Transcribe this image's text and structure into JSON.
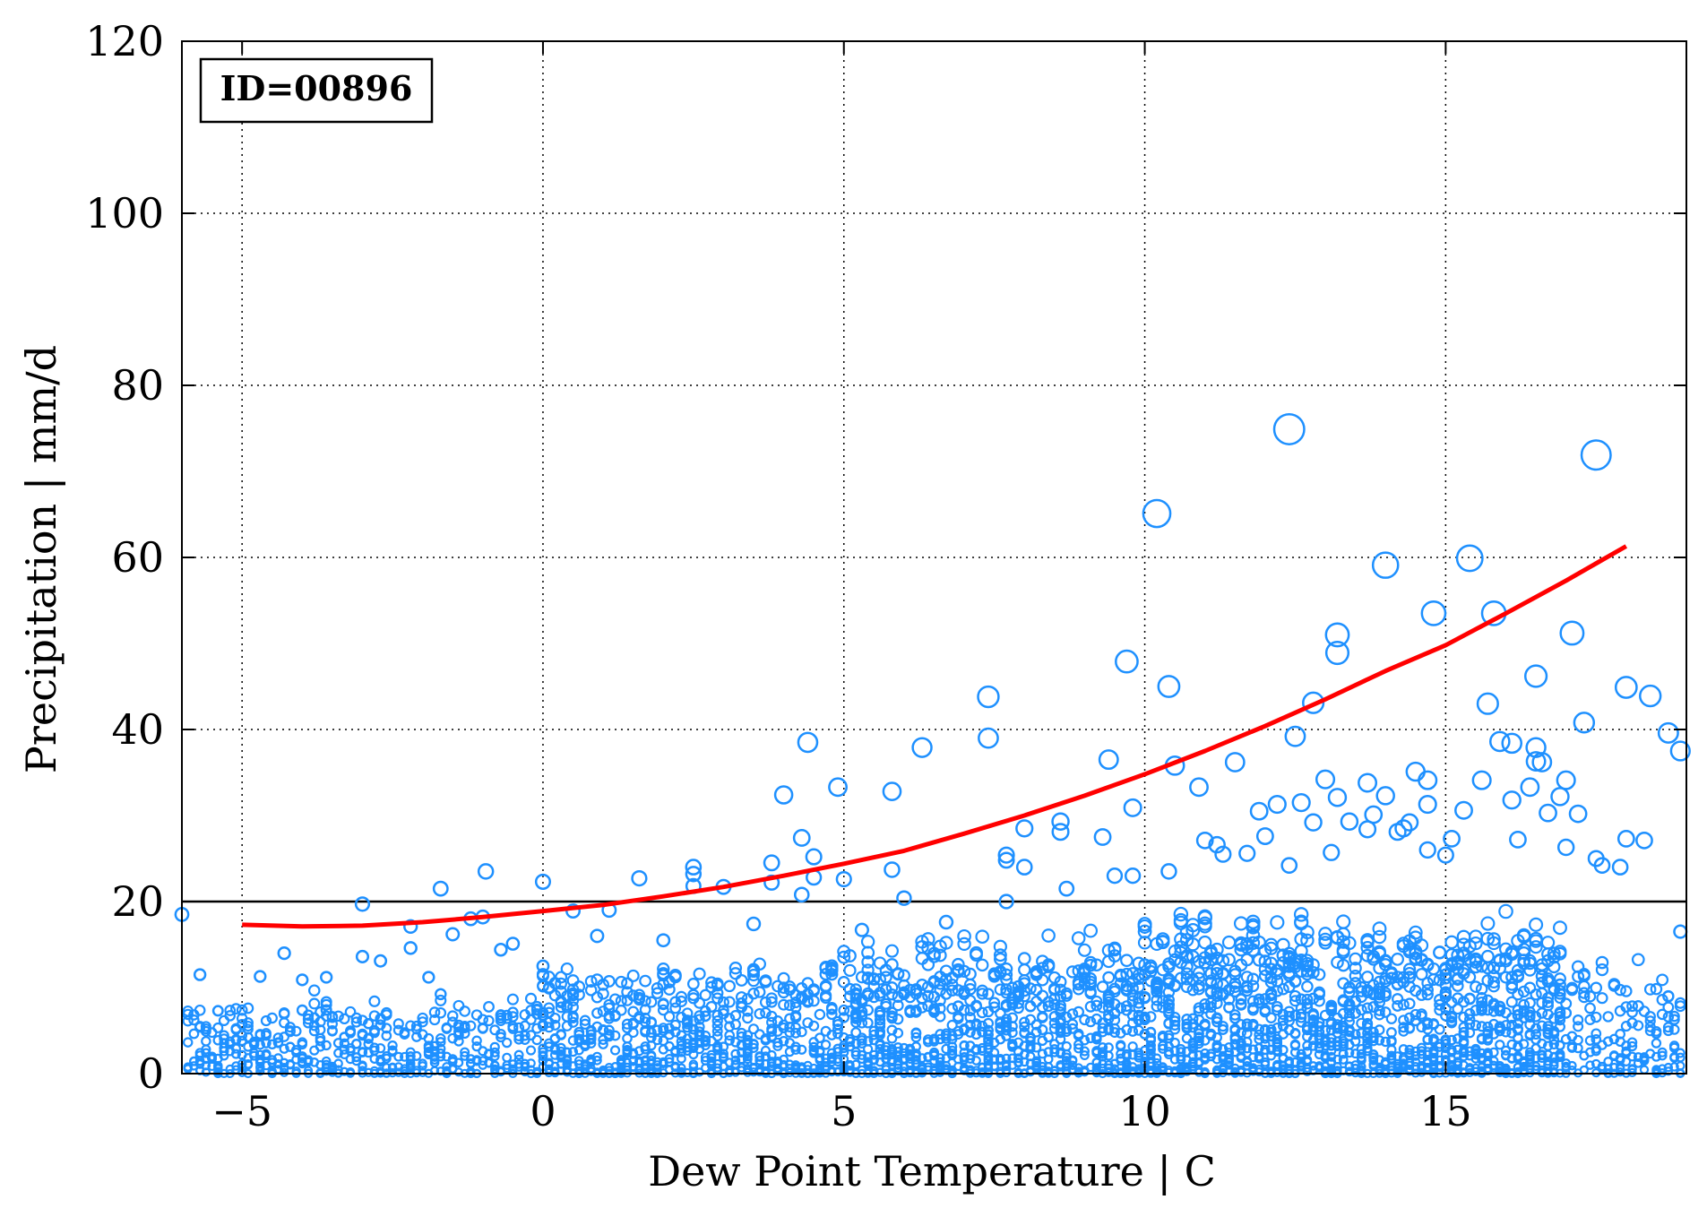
{
  "chart_data": {
    "type": "scatter",
    "annotation": "ID=00896",
    "xlabel": "Dew Point Temperature | C",
    "ylabel": "Precipitation | mm/d",
    "xlim": [
      -6,
      19
    ],
    "ylim": [
      0,
      120
    ],
    "x_ticks": [
      -5,
      0,
      5,
      10,
      15
    ],
    "x_tick_labels": [
      "−5",
      "0",
      "5",
      "10",
      "15"
    ],
    "y_ticks": [
      0,
      20,
      40,
      60,
      80,
      100,
      120
    ],
    "y_tick_labels": [
      "0",
      "20",
      "40",
      "60",
      "80",
      "100",
      "120"
    ],
    "grid": true,
    "grid_style": "dotted",
    "reference_line": {
      "y": 20,
      "color": "#000000"
    },
    "colors": {
      "points": "#1e90ff",
      "fit": "#ff0000"
    },
    "marker": "open-circle, size scales with precipitation",
    "series": [
      {
        "kind": "scatter",
        "highlighted_points": [
          {
            "x": -6.0,
            "y": 18.5
          },
          {
            "x": -5.7,
            "y": 11.5
          },
          {
            "x": -5.7,
            "y": 5.4
          },
          {
            "x": -5.4,
            "y": 7.3
          },
          {
            "x": -5.0,
            "y": 3.8
          },
          {
            "x": -4.7,
            "y": 11.3
          },
          {
            "x": -4.3,
            "y": 14.0
          },
          {
            "x": -4.0,
            "y": 10.9
          },
          {
            "x": -3.6,
            "y": 11.2
          },
          {
            "x": -3.6,
            "y": 7.4
          },
          {
            "x": -3.0,
            "y": 19.7
          },
          {
            "x": -3.0,
            "y": 13.6
          },
          {
            "x": -2.7,
            "y": 13.1
          },
          {
            "x": -2.2,
            "y": 17.1
          },
          {
            "x": -2.2,
            "y": 14.6
          },
          {
            "x": -1.9,
            "y": 11.2
          },
          {
            "x": -1.7,
            "y": 21.5
          },
          {
            "x": -1.5,
            "y": 16.2
          },
          {
            "x": -1.2,
            "y": 18.0
          },
          {
            "x": -1.0,
            "y": 18.2
          },
          {
            "x": -0.95,
            "y": 23.5
          },
          {
            "x": -0.7,
            "y": 14.4
          },
          {
            "x": -0.5,
            "y": 15.1
          },
          {
            "x": 0.0,
            "y": 22.3
          },
          {
            "x": 0.0,
            "y": 12.5
          },
          {
            "x": 0.5,
            "y": 18.9
          },
          {
            "x": 0.9,
            "y": 16.0
          },
          {
            "x": 1.1,
            "y": 19.0
          },
          {
            "x": 1.6,
            "y": 22.7
          },
          {
            "x": 2.0,
            "y": 15.5
          },
          {
            "x": 2.5,
            "y": 24.0
          },
          {
            "x": 2.5,
            "y": 23.2
          },
          {
            "x": 2.5,
            "y": 21.8
          },
          {
            "x": 3.0,
            "y": 21.7
          },
          {
            "x": 3.5,
            "y": 17.4
          },
          {
            "x": 3.8,
            "y": 24.5
          },
          {
            "x": 3.8,
            "y": 22.2
          },
          {
            "x": 4.0,
            "y": 32.4
          },
          {
            "x": 4.3,
            "y": 27.4
          },
          {
            "x": 4.3,
            "y": 20.8
          },
          {
            "x": 4.4,
            "y": 38.5
          },
          {
            "x": 4.5,
            "y": 25.2
          },
          {
            "x": 4.5,
            "y": 22.8
          },
          {
            "x": 4.9,
            "y": 33.3
          },
          {
            "x": 5.0,
            "y": 22.6
          },
          {
            "x": 5.3,
            "y": 16.7
          },
          {
            "x": 5.8,
            "y": 32.8
          },
          {
            "x": 5.8,
            "y": 23.7
          },
          {
            "x": 6.0,
            "y": 20.4
          },
          {
            "x": 6.3,
            "y": 37.9
          },
          {
            "x": 6.7,
            "y": 17.6
          },
          {
            "x": 7.4,
            "y": 43.8
          },
          {
            "x": 7.4,
            "y": 39.0
          },
          {
            "x": 7.7,
            "y": 25.4
          },
          {
            "x": 7.7,
            "y": 24.8
          },
          {
            "x": 7.7,
            "y": 20.0
          },
          {
            "x": 8.0,
            "y": 28.5
          },
          {
            "x": 8.0,
            "y": 24.0
          },
          {
            "x": 8.6,
            "y": 29.3
          },
          {
            "x": 8.6,
            "y": 28.1
          },
          {
            "x": 8.7,
            "y": 21.5
          },
          {
            "x": 9.3,
            "y": 27.5
          },
          {
            "x": 9.4,
            "y": 36.5
          },
          {
            "x": 9.5,
            "y": 23.0
          },
          {
            "x": 9.7,
            "y": 47.9
          },
          {
            "x": 9.8,
            "y": 30.9
          },
          {
            "x": 9.8,
            "y": 23.0
          },
          {
            "x": 10.2,
            "y": 65.1
          },
          {
            "x": 10.4,
            "y": 45.0
          },
          {
            "x": 10.4,
            "y": 23.5
          },
          {
            "x": 10.5,
            "y": 35.8
          },
          {
            "x": 10.9,
            "y": 33.3
          },
          {
            "x": 11.0,
            "y": 27.1
          },
          {
            "x": 11.2,
            "y": 26.6
          },
          {
            "x": 11.3,
            "y": 25.5
          },
          {
            "x": 11.5,
            "y": 36.2
          },
          {
            "x": 11.7,
            "y": 25.6
          },
          {
            "x": 11.9,
            "y": 30.5
          },
          {
            "x": 12.0,
            "y": 27.6
          },
          {
            "x": 12.2,
            "y": 31.3
          },
          {
            "x": 12.4,
            "y": 24.2
          },
          {
            "x": 12.4,
            "y": 74.9
          },
          {
            "x": 12.5,
            "y": 39.2
          },
          {
            "x": 12.6,
            "y": 31.5
          },
          {
            "x": 12.8,
            "y": 43.1
          },
          {
            "x": 12.8,
            "y": 29.2
          },
          {
            "x": 13.0,
            "y": 34.2
          },
          {
            "x": 13.1,
            "y": 25.7
          },
          {
            "x": 13.2,
            "y": 51.0
          },
          {
            "x": 13.2,
            "y": 48.9
          },
          {
            "x": 13.2,
            "y": 32.1
          },
          {
            "x": 13.4,
            "y": 29.3
          },
          {
            "x": 13.7,
            "y": 33.8
          },
          {
            "x": 13.7,
            "y": 28.4
          },
          {
            "x": 13.8,
            "y": 30.1
          },
          {
            "x": 14.0,
            "y": 59.1
          },
          {
            "x": 14.0,
            "y": 32.3
          },
          {
            "x": 14.2,
            "y": 28.1
          },
          {
            "x": 14.3,
            "y": 28.5
          },
          {
            "x": 14.4,
            "y": 29.2
          },
          {
            "x": 14.5,
            "y": 35.1
          },
          {
            "x": 14.7,
            "y": 34.1
          },
          {
            "x": 14.7,
            "y": 31.3
          },
          {
            "x": 14.7,
            "y": 26.0
          },
          {
            "x": 14.8,
            "y": 53.5
          },
          {
            "x": 15.0,
            "y": 25.4
          },
          {
            "x": 15.1,
            "y": 27.3
          },
          {
            "x": 15.3,
            "y": 30.6
          },
          {
            "x": 15.4,
            "y": 59.9
          },
          {
            "x": 15.6,
            "y": 34.1
          },
          {
            "x": 15.7,
            "y": 43.0
          },
          {
            "x": 15.8,
            "y": 53.5
          },
          {
            "x": 15.9,
            "y": 38.6
          },
          {
            "x": 16.1,
            "y": 38.4
          },
          {
            "x": 16.1,
            "y": 31.8
          },
          {
            "x": 16.2,
            "y": 27.2
          },
          {
            "x": 16.4,
            "y": 33.3
          },
          {
            "x": 16.5,
            "y": 46.2
          },
          {
            "x": 16.5,
            "y": 37.9
          },
          {
            "x": 16.5,
            "y": 36.3
          },
          {
            "x": 16.6,
            "y": 36.2
          },
          {
            "x": 16.7,
            "y": 30.3
          },
          {
            "x": 16.9,
            "y": 32.2
          },
          {
            "x": 17.0,
            "y": 34.1
          },
          {
            "x": 17.0,
            "y": 26.3
          },
          {
            "x": 17.1,
            "y": 51.2
          },
          {
            "x": 17.2,
            "y": 30.2
          },
          {
            "x": 17.3,
            "y": 40.8
          },
          {
            "x": 17.5,
            "y": 71.9
          },
          {
            "x": 17.5,
            "y": 25.0
          },
          {
            "x": 17.6,
            "y": 24.2
          },
          {
            "x": 17.9,
            "y": 24.0
          },
          {
            "x": 18.0,
            "y": 44.9
          },
          {
            "x": 18.0,
            "y": 27.3
          },
          {
            "x": 18.3,
            "y": 27.1
          },
          {
            "x": 18.4,
            "y": 43.9
          },
          {
            "x": 18.7,
            "y": 39.6
          },
          {
            "x": 18.9,
            "y": 37.5
          },
          {
            "x": 18.9,
            "y": 16.5
          }
        ],
        "bulk_note": "dense cloud of small circles below 20 mm/d at every 0.1 C step of dew point"
      },
      {
        "kind": "line",
        "fit_points": [
          {
            "x": -5,
            "y": 17.3
          },
          {
            "x": -4,
            "y": 17.1
          },
          {
            "x": -3,
            "y": 17.2
          },
          {
            "x": -2,
            "y": 17.6
          },
          {
            "x": -1,
            "y": 18.2
          },
          {
            "x": 0,
            "y": 18.9
          },
          {
            "x": 1,
            "y": 19.6
          },
          {
            "x": 2,
            "y": 20.6
          },
          {
            "x": 3,
            "y": 21.7
          },
          {
            "x": 4,
            "y": 23.0
          },
          {
            "x": 5,
            "y": 24.4
          },
          {
            "x": 6,
            "y": 25.9
          },
          {
            "x": 7,
            "y": 27.9
          },
          {
            "x": 8,
            "y": 30.0
          },
          {
            "x": 9,
            "y": 32.3
          },
          {
            "x": 10,
            "y": 34.8
          },
          {
            "x": 11,
            "y": 37.5
          },
          {
            "x": 12,
            "y": 40.4
          },
          {
            "x": 13,
            "y": 43.5
          },
          {
            "x": 14,
            "y": 46.8
          },
          {
            "x": 15,
            "y": 49.8
          },
          {
            "x": 16,
            "y": 53.5
          },
          {
            "x": 17,
            "y": 57.3
          },
          {
            "x": 18,
            "y": 61.3
          }
        ]
      }
    ]
  }
}
